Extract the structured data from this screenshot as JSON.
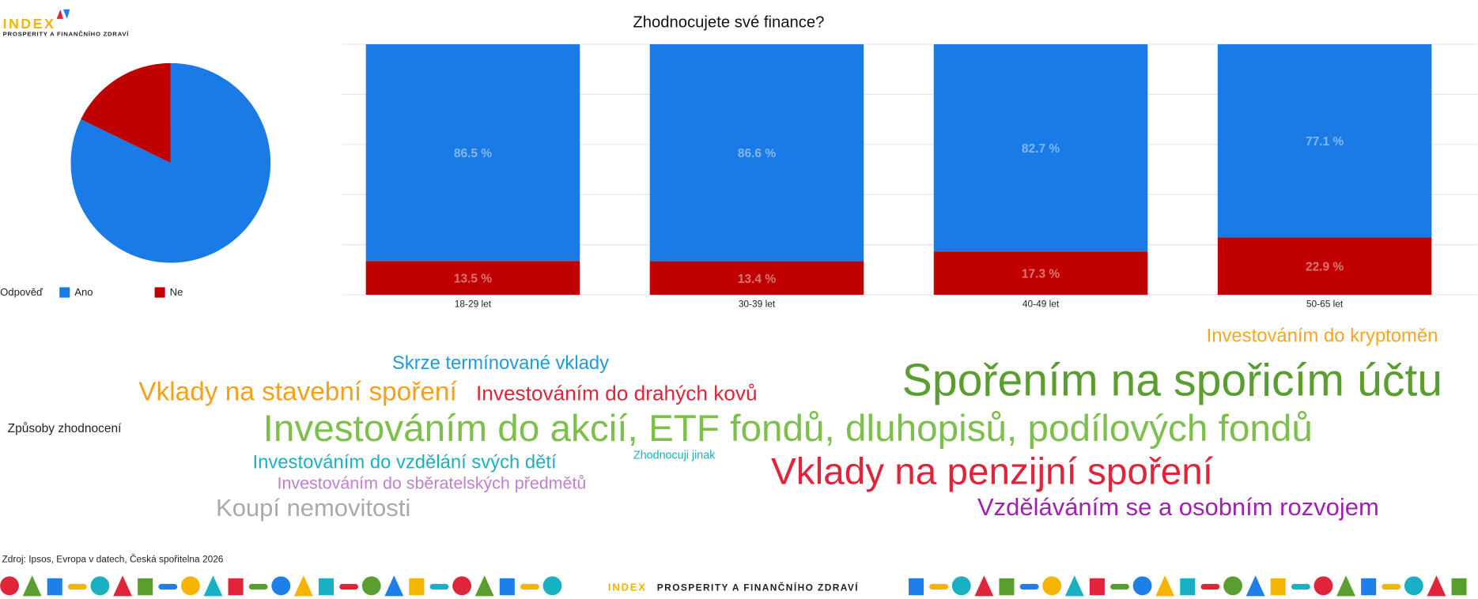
{
  "header": {
    "logo": "INDEX",
    "logo_subtitle": "PROSPERITY A FINANČNÍHO ZDRAVÍ"
  },
  "chart_data": [
    {
      "type": "pie",
      "legend_title": "Odpověď",
      "categories": [
        "Ano",
        "Ne"
      ],
      "values": [
        82.2,
        17.8
      ],
      "colors": [
        "#1a7be6",
        "#c00000"
      ]
    },
    {
      "type": "bar",
      "stacked": true,
      "title": "Zhodnocujete své finance?",
      "categories": [
        "18-29 let",
        "30-39 let",
        "40-49 let",
        "50-65 let"
      ],
      "series": [
        {
          "name": "Ano",
          "color": "#1a7be6",
          "values": [
            86.5,
            86.6,
            82.7,
            77.1
          ],
          "value_labels": [
            "86.5 %",
            "86.6 %",
            "82.7 %",
            "77.1 %"
          ]
        },
        {
          "name": "Ne",
          "color": "#c00000",
          "values": [
            13.5,
            13.4,
            17.3,
            22.9
          ],
          "value_labels": [
            "13.5 %",
            "13.4 %",
            "17.3 %",
            "22.9 %"
          ]
        }
      ],
      "ylim": [
        0,
        100
      ],
      "yticks": [
        0,
        20,
        40,
        60,
        80,
        100
      ],
      "grid": true
    },
    {
      "type": "wordcloud",
      "label": "Způsoby zhodnocení",
      "words": [
        {
          "text": "Investováním do kryptoměn",
          "weight": 20,
          "color": "#f5a623"
        },
        {
          "text": "Skrze termínované vklady",
          "weight": 20,
          "color": "#1e9be0"
        },
        {
          "text": "Spořením na spořicím účtu",
          "weight": 48,
          "color": "#5a9e2f"
        },
        {
          "text": "Vklady na stavební spoření",
          "weight": 28,
          "color": "#f5a01a"
        },
        {
          "text": "Investováním do drahých kovů",
          "weight": 22,
          "color": "#e0243a"
        },
        {
          "text": "Investováním do akcií, ETF fondů, dluhopisů, podílových fondů",
          "weight": 40,
          "color": "#7cbf4a"
        },
        {
          "text": "Investováním do vzdělání svých dětí",
          "weight": 20,
          "color": "#1ab0c4"
        },
        {
          "text": "Zhodnocuji jinak",
          "weight": 12,
          "color": "#1ab0c4"
        },
        {
          "text": "Vklady na penzijní spoření",
          "weight": 40,
          "color": "#e0243a"
        },
        {
          "text": "Investováním do sběratelských předmětů",
          "weight": 18,
          "color": "#c07fcf"
        },
        {
          "text": "Koupí nemovitosti",
          "weight": 26,
          "color": "#aaaaaa"
        },
        {
          "text": "Vzděláváním se a osobním rozvojem",
          "weight": 26,
          "color": "#a020b0"
        }
      ]
    }
  ],
  "source": "Zdroj: Ipsos, Evropa v datech, Česká spořitelna 2026"
}
